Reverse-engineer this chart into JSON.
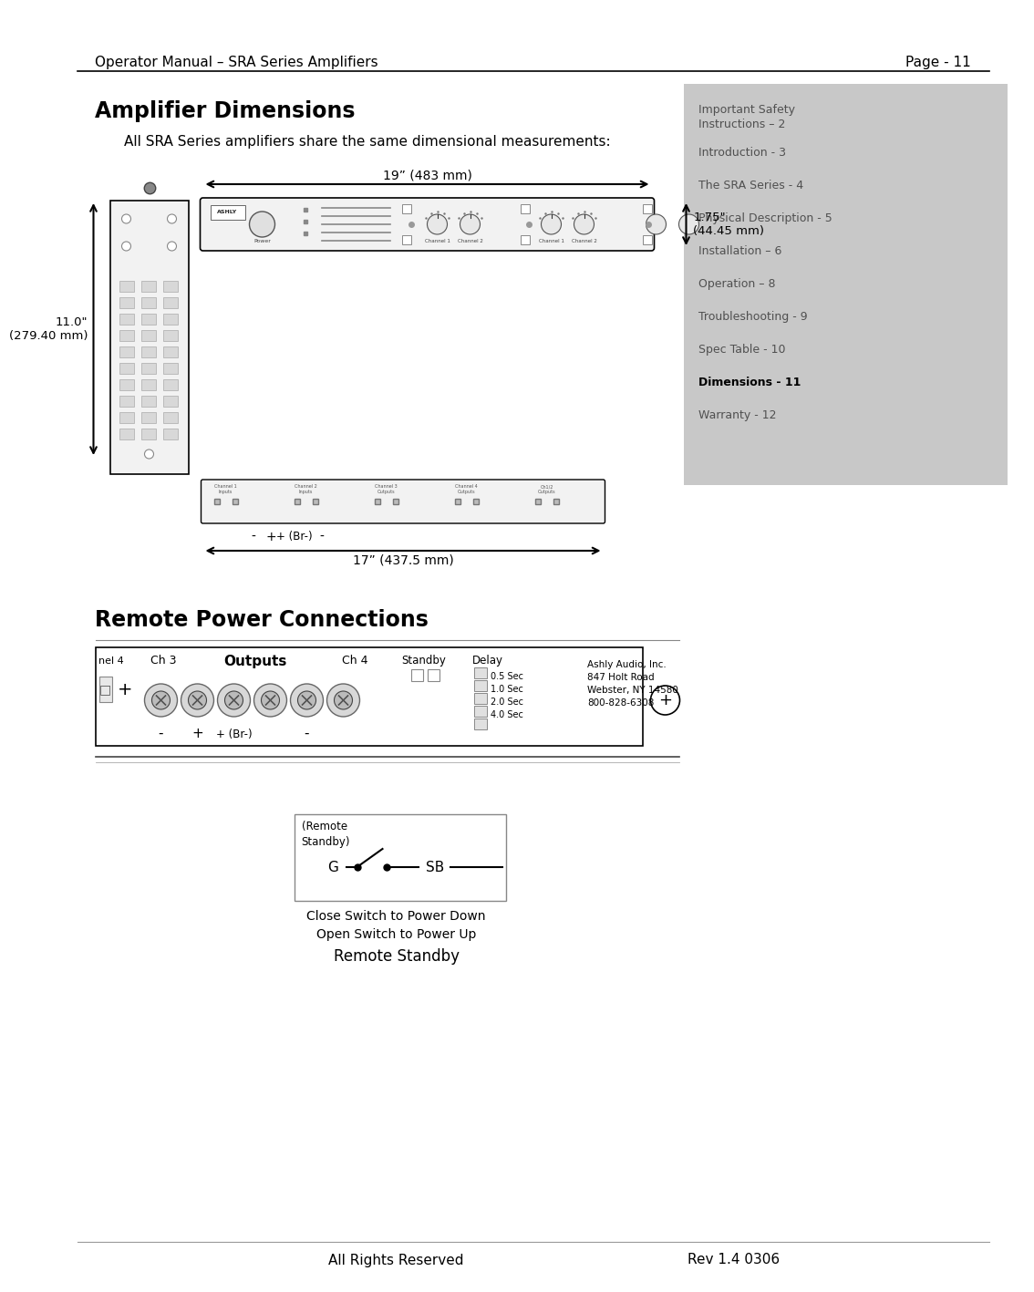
{
  "page_title_left": "Operator Manual – SRA Series Amplifiers",
  "page_title_right": "Page - 11",
  "section1_title": "Amplifier Dimensions",
  "section1_body": "All SRA Series amplifiers share the same dimensional measurements:",
  "dim_19in": "19” (483 mm)",
  "dim_175in": "1.75\"\n(44.45 mm)",
  "dim_11in": "11.0\"\n(279.40 mm)",
  "dim_17in": "17” (437.5 mm)",
  "section2_title": "Remote Power Connections",
  "sidebar_items": [
    {
      "text": "Important Safety\nInstructions – 2",
      "bold": false
    },
    {
      "text": "Introduction - 3",
      "bold": false
    },
    {
      "text": "The SRA Series - 4",
      "bold": false
    },
    {
      "text": "Physical Description - 5",
      "bold": false
    },
    {
      "text": "Installation – 6",
      "bold": false
    },
    {
      "text": "Operation – 8",
      "bold": false
    },
    {
      "text": "Troubleshooting - 9",
      "bold": false
    },
    {
      "text": "Spec Table - 10",
      "bold": false
    },
    {
      "text": "Dimensions - 11",
      "bold": true
    },
    {
      "text": "Warranty - 12",
      "bold": false
    }
  ],
  "footer_left": "All Rights Reserved",
  "footer_right": "Rev 1.4 0306",
  "bg_color": "#ffffff",
  "sidebar_bg": "#c8c8c8",
  "line_color": "#000000",
  "text_color": "#000000",
  "gray_text": "#555555"
}
